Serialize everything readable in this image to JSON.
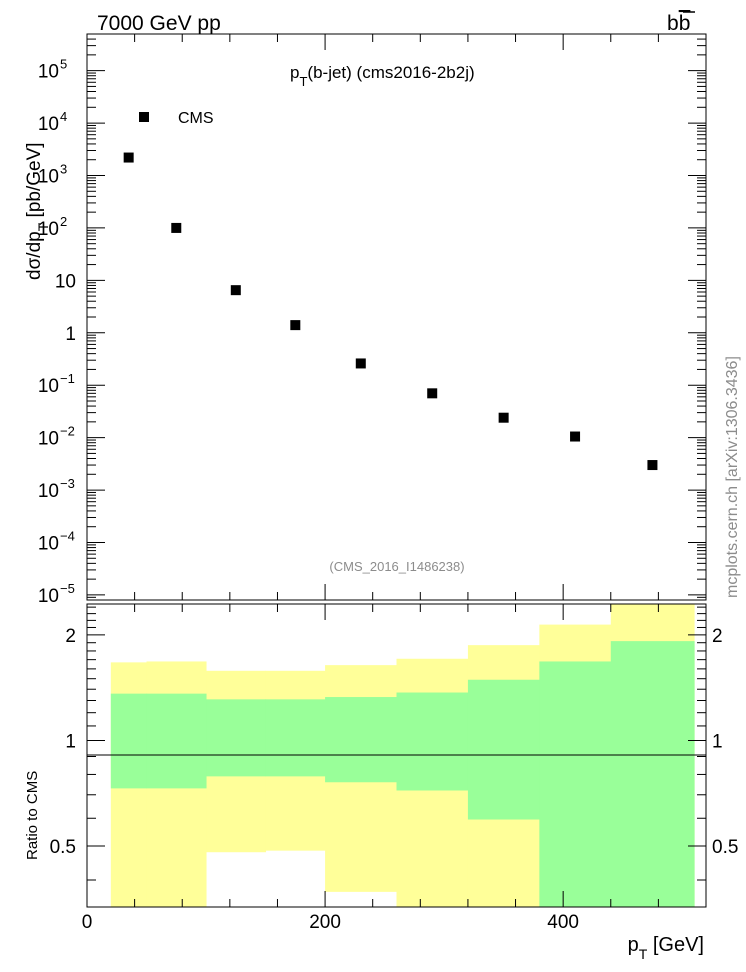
{
  "header": {
    "energy_label": "7000 GeV pp",
    "process_base": "b",
    "process_bar": "b"
  },
  "chart_data": [
    {
      "type": "scatter",
      "title_parts": {
        "p": "p",
        "sub": "T",
        "rest": "(b-jet) (cms2016-2b2j)"
      },
      "ylabel_parts": {
        "main": "dσ/dp",
        "sub": "T",
        "unit": " [pb/GeV]"
      },
      "yscale": "log",
      "ylim": [
        8e-06,
        500000
      ],
      "xlim": [
        0,
        520
      ],
      "legend": [
        {
          "name": "CMS",
          "marker": "black-square"
        }
      ],
      "legend_placement": "top-left",
      "annotation": "(CMS_2016_I1486238)",
      "side_label": "mcplots.cern.ch [arXiv:1306.3436]",
      "y_tick_labels": [
        {
          "v": 100000,
          "base": "10",
          "exp": "5"
        },
        {
          "v": 10000,
          "base": "10",
          "exp": "4"
        },
        {
          "v": 1000,
          "base": "10",
          "exp": "3"
        },
        {
          "v": 100,
          "base": "10",
          "exp": "2"
        },
        {
          "v": 10,
          "base": "10",
          "exp": ""
        },
        {
          "v": 1,
          "base": "1",
          "exp": ""
        },
        {
          "v": 0.1,
          "base": "10",
          "exp": "−1"
        },
        {
          "v": 0.01,
          "base": "10",
          "exp": "−2"
        },
        {
          "v": 0.001,
          "base": "10",
          "exp": "−3"
        },
        {
          "v": 0.0001,
          "base": "10",
          "exp": "−4"
        },
        {
          "v": 1e-05,
          "base": "10",
          "exp": "−5"
        }
      ],
      "series": [
        {
          "name": "CMS",
          "x": [
            35,
            75,
            125,
            175,
            230,
            290,
            350,
            410,
            475
          ],
          "y": [
            2200,
            100,
            6.5,
            1.4,
            0.26,
            0.07,
            0.024,
            0.0105,
            0.003
          ]
        }
      ]
    },
    {
      "type": "area",
      "ylabel": "Ratio to CMS",
      "xlabel_parts": {
        "p": "p",
        "sub": "T",
        "unit": " [GeV]"
      },
      "xlim": [
        0,
        520
      ],
      "ylim": [
        0.335,
        2.45
      ],
      "yscale": "log",
      "x_ticks": [
        0,
        200,
        400
      ],
      "y_ticks": [
        0.5,
        1,
        2
      ],
      "reference_line": 1,
      "bins": [
        20,
        50,
        100,
        150,
        200,
        260,
        320,
        380,
        440,
        510
      ],
      "outer_band": {
        "color": "#ffff99",
        "upper": [
          1.67,
          1.68,
          1.58,
          1.58,
          1.64,
          1.71,
          1.87,
          2.14,
          2.45
        ],
        "lower": [
          0.335,
          0.335,
          0.48,
          0.485,
          0.37,
          0.335,
          0.335,
          0.335,
          0.335
        ]
      },
      "inner_band": {
        "color": "#99ff99",
        "upper": [
          1.36,
          1.36,
          1.31,
          1.31,
          1.33,
          1.37,
          1.49,
          1.68,
          1.92
        ],
        "lower": [
          0.73,
          0.73,
          0.79,
          0.79,
          0.76,
          0.72,
          0.595,
          0.335,
          0.335
        ]
      }
    }
  ]
}
